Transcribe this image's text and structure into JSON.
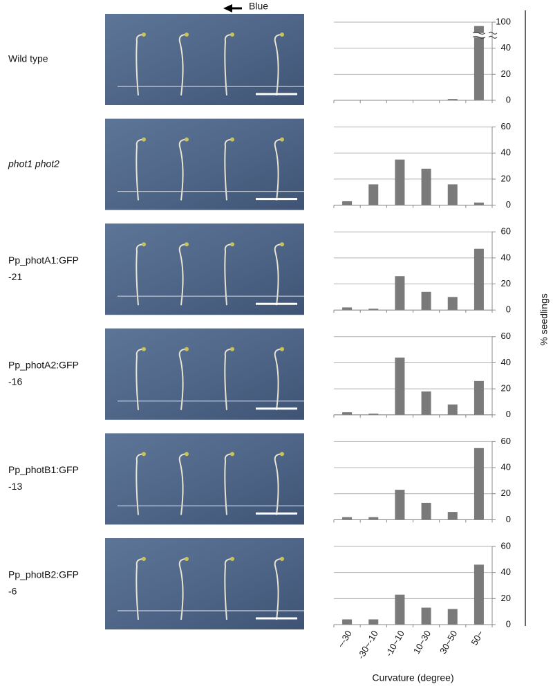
{
  "annotation": "Blue",
  "y_label": "% seedlings",
  "chart_data": [
    {
      "type": "bar",
      "label_lines": [
        "Wild type"
      ],
      "italic": false,
      "values": [
        0,
        0,
        0,
        0,
        1,
        97
      ],
      "color": "#7a7a7a",
      "ylim": [
        0,
        100
      ],
      "yticks": [
        0,
        20,
        40,
        100
      ],
      "axis_break": [
        50,
        90
      ],
      "grid": true
    },
    {
      "type": "bar",
      "label_lines": [
        "phot1 phot2"
      ],
      "italic": true,
      "values": [
        3,
        16,
        35,
        28,
        16,
        2
      ],
      "color": "#7a7a7a",
      "ylim": [
        0,
        60
      ],
      "yticks": [
        0,
        20,
        40,
        60
      ],
      "grid": true
    },
    {
      "type": "bar",
      "label_lines": [
        "Pp_photA1:GFP",
        "-21"
      ],
      "italic": false,
      "values": [
        2,
        1,
        26,
        14,
        10,
        47
      ],
      "color": "#7a7a7a",
      "ylim": [
        0,
        60
      ],
      "yticks": [
        0,
        20,
        40,
        60
      ],
      "grid": true
    },
    {
      "type": "bar",
      "label_lines": [
        "Pp_photA2:GFP",
        "-16"
      ],
      "italic": false,
      "values": [
        2,
        1,
        44,
        18,
        8,
        26
      ],
      "color": "#7a7a7a",
      "ylim": [
        0,
        60
      ],
      "yticks": [
        0,
        20,
        40,
        60
      ],
      "grid": true
    },
    {
      "type": "bar",
      "label_lines": [
        "Pp_photB1:GFP",
        "-13"
      ],
      "italic": false,
      "values": [
        2,
        2,
        23,
        13,
        6,
        55
      ],
      "color": "#7a7a7a",
      "ylim": [
        0,
        60
      ],
      "yticks": [
        0,
        20,
        40,
        60
      ],
      "grid": true
    },
    {
      "type": "bar",
      "label_lines": [
        "Pp_photB2:GFP",
        "-6"
      ],
      "italic": false,
      "values": [
        4,
        4,
        23,
        13,
        12,
        46
      ],
      "color": "#7a7a7a",
      "ylim": [
        0,
        60
      ],
      "yticks": [
        0,
        20,
        40,
        60
      ],
      "grid": true,
      "categories": [
        "~-30",
        "-30~-10",
        "-10~10",
        "10~30",
        "30~50",
        "50~"
      ],
      "x_label": "Curvature (degree)"
    }
  ]
}
